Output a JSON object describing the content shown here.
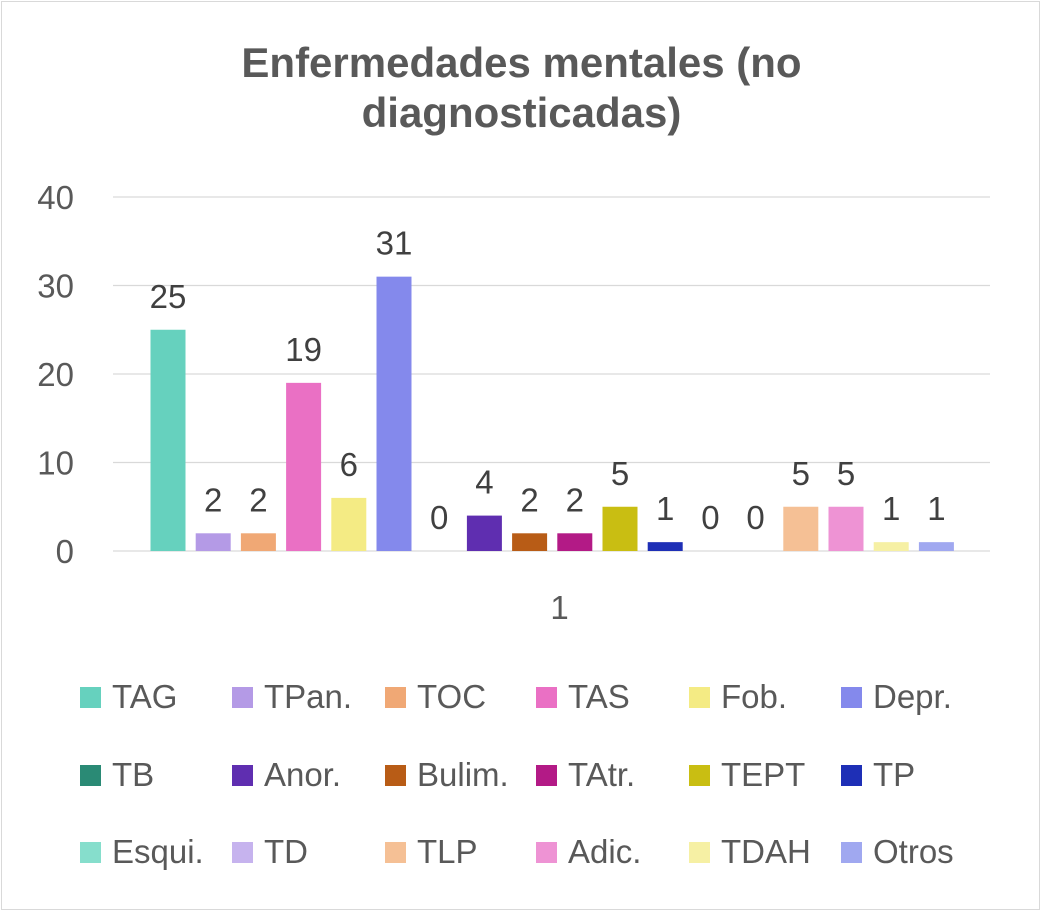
{
  "chart_data": {
    "type": "bar",
    "title_lines": [
      "Enfermedades mentales (no",
      "diagnosticadas)"
    ],
    "categories": [
      "1"
    ],
    "xlabel": "",
    "ylabel": "",
    "ylim": [
      0,
      40
    ],
    "yticks": [
      "0",
      "10",
      "20",
      "30",
      "40"
    ],
    "grid": true,
    "legend_position": "bottom",
    "series": [
      {
        "name": "TAG",
        "values": [
          25
        ],
        "color": "#66D1BE"
      },
      {
        "name": "TPan.",
        "values": [
          2
        ],
        "color": "#B49AE6"
      },
      {
        "name": "TOC",
        "values": [
          2
        ],
        "color": "#F0A875"
      },
      {
        "name": "TAS",
        "values": [
          19
        ],
        "color": "#EA70C4"
      },
      {
        "name": "Fob.",
        "values": [
          6
        ],
        "color": "#F4EB84"
      },
      {
        "name": "Depr.",
        "values": [
          31
        ],
        "color": "#8489EC"
      },
      {
        "name": "TB",
        "values": [
          0
        ],
        "color": "#2A8A75"
      },
      {
        "name": "Anor.",
        "values": [
          4
        ],
        "color": "#5F2EB0"
      },
      {
        "name": "Bulim.",
        "values": [
          2
        ],
        "color": "#B85C16"
      },
      {
        "name": "TAtr.",
        "values": [
          2
        ],
        "color": "#B31A86"
      },
      {
        "name": "TEPT",
        "values": [
          5
        ],
        "color": "#C9BE12"
      },
      {
        "name": "TP",
        "values": [
          1
        ],
        "color": "#1E2FB6"
      },
      {
        "name": "Esqui.",
        "values": [
          0
        ],
        "color": "#86DECC"
      },
      {
        "name": "TD",
        "values": [
          0
        ],
        "color": "#C6B3EE"
      },
      {
        "name": "TLP",
        "values": [
          5
        ],
        "color": "#F5C095"
      },
      {
        "name": "Adic.",
        "values": [
          5
        ],
        "color": "#EE93D4"
      },
      {
        "name": "TDAH",
        "values": [
          1
        ],
        "color": "#F6F0A4"
      },
      {
        "name": "Otros",
        "values": [
          1
        ],
        "color": "#A0A8F0"
      }
    ]
  }
}
